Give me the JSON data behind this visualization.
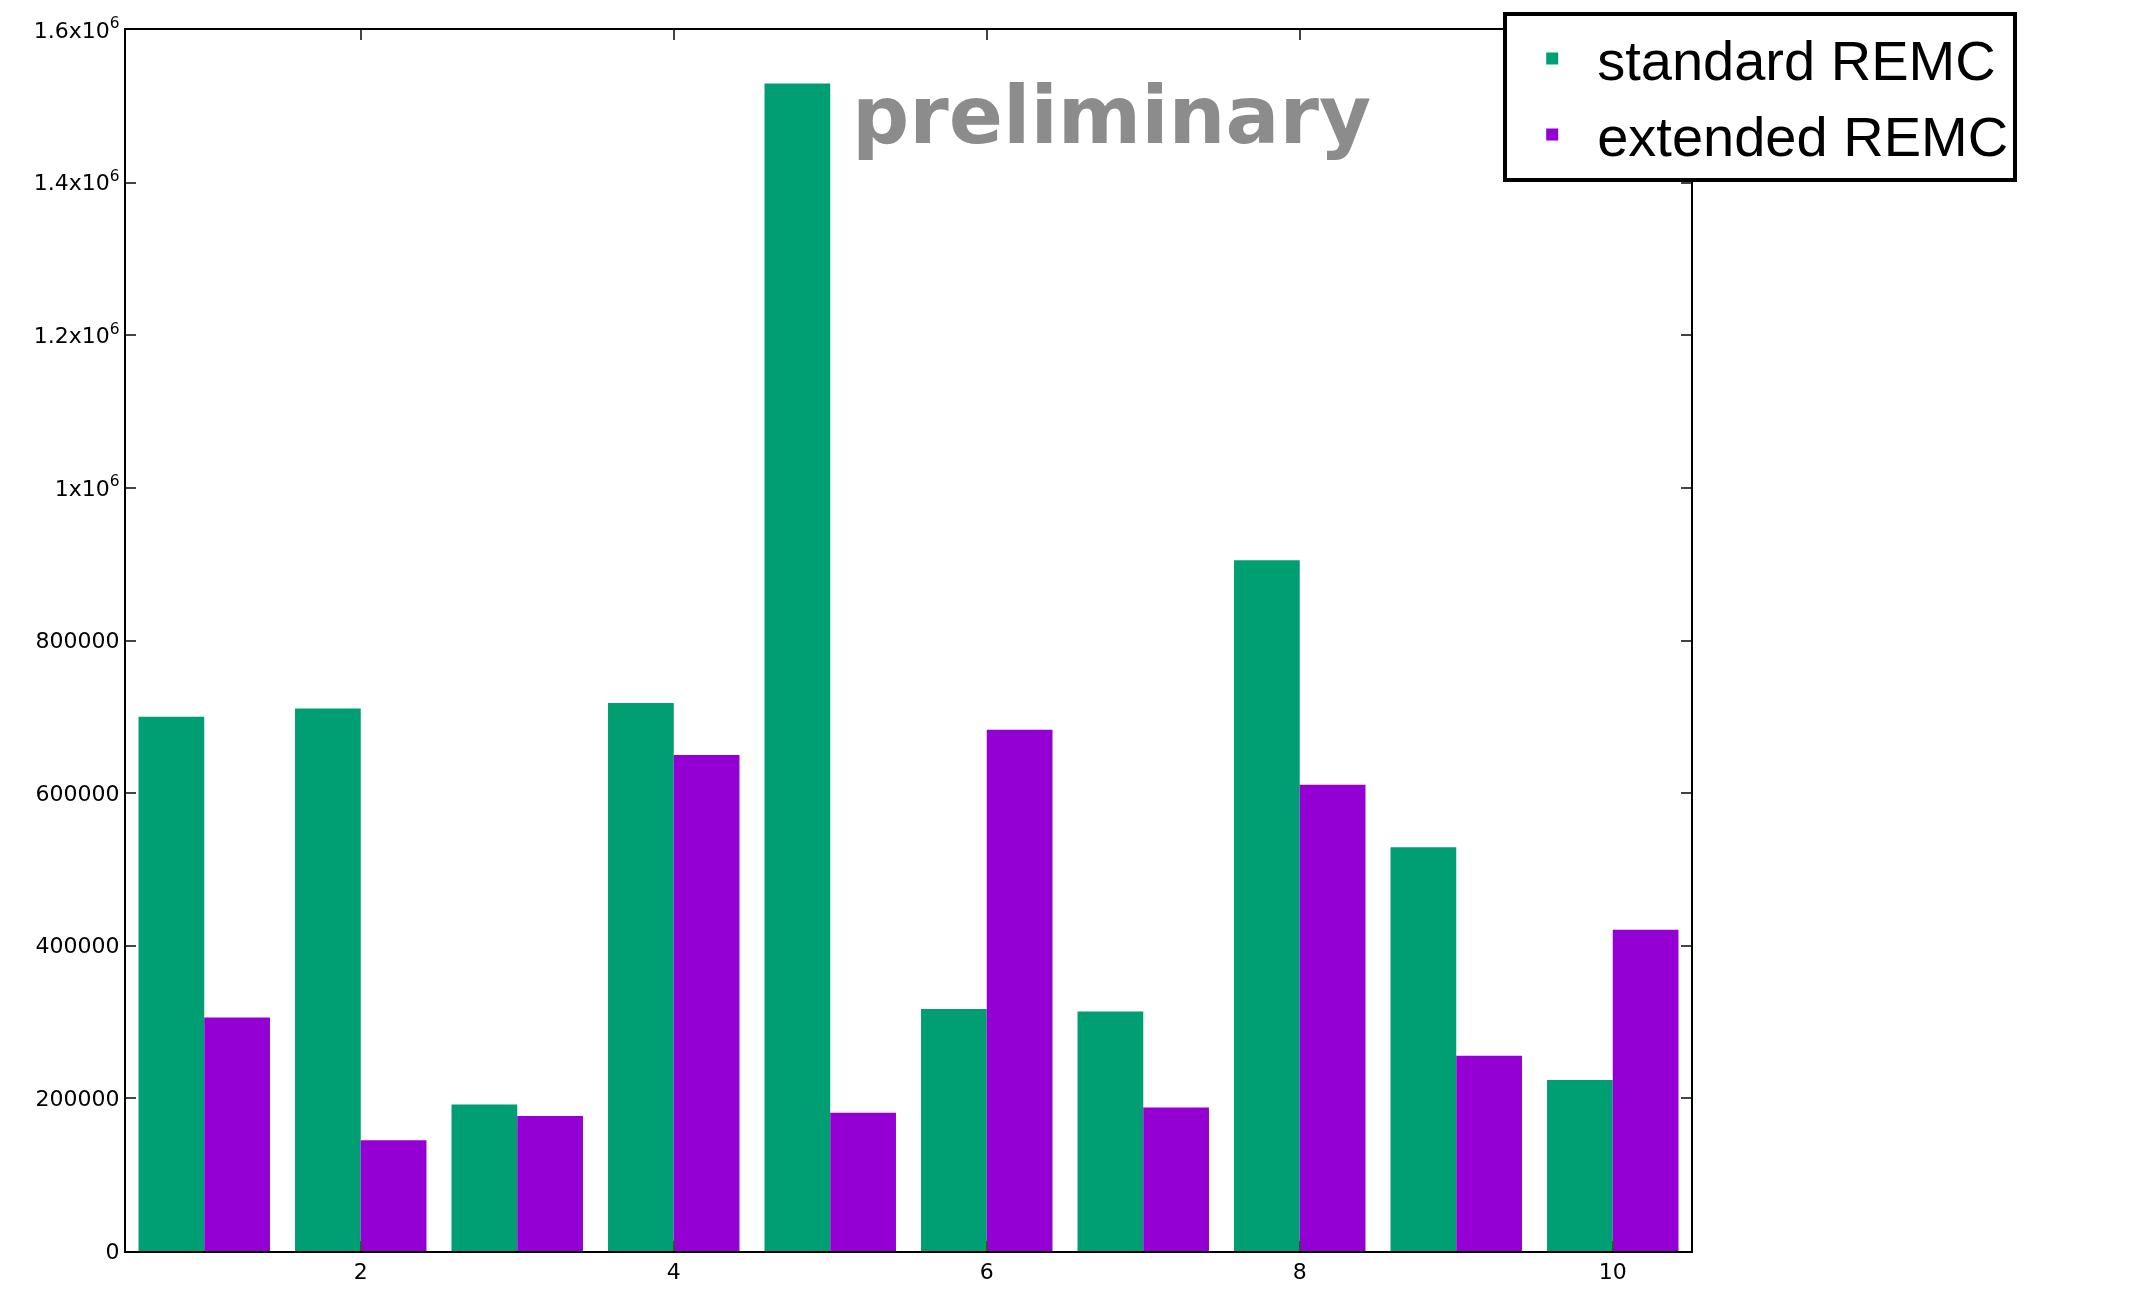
{
  "chart_data": {
    "type": "bar",
    "x": [
      1,
      2,
      3,
      4,
      5,
      6,
      7,
      8,
      9,
      10
    ],
    "series": [
      {
        "name": "standard REMC",
        "color": "#009e73",
        "values": [
          700000,
          711000,
          192000,
          718000,
          1530000,
          317000,
          314000,
          905000,
          529000,
          224000
        ]
      },
      {
        "name": "extended REMC",
        "color": "#9400d3",
        "values": [
          306000,
          145000,
          177000,
          650000,
          181000,
          683000,
          188000,
          611000,
          256000,
          421000
        ]
      }
    ],
    "xlim": [
      0.5,
      10.5
    ],
    "xticks": [
      2,
      4,
      6,
      8,
      10
    ],
    "ylim": [
      0,
      1600000
    ],
    "yticks": [
      0,
      200000,
      400000,
      600000,
      800000,
      {
        "value": 1000000,
        "label": "1x10$^{6}$"
      },
      {
        "value": 1200000,
        "label": "1.2x10$^{6}$"
      },
      {
        "value": 1400000,
        "label": "1.4x10$^{6}$"
      },
      {
        "value": 1600000,
        "label": "1.6x10$^{6}$"
      }
    ],
    "grid": false,
    "legend": "top right",
    "annotations": [
      "preliminary"
    ]
  }
}
